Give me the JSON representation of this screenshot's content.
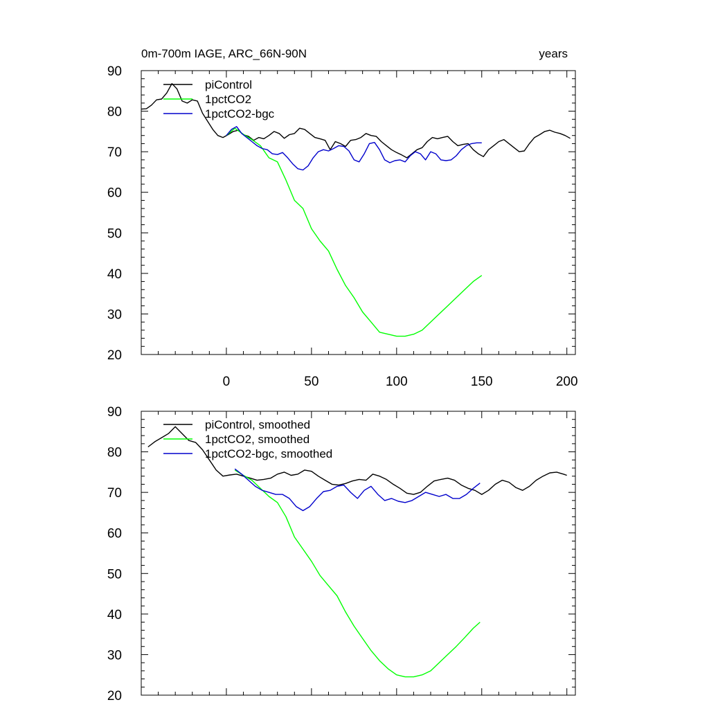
{
  "chart_data": [
    {
      "type": "line",
      "title_left": "0m-700m IAGE, ARC_66N-90N",
      "title_right": "years",
      "xlim": [
        -50,
        205
      ],
      "ylim": [
        20,
        90
      ],
      "xticks": [
        0,
        50,
        100,
        150,
        200
      ],
      "xtick_labels": [
        "0",
        "50",
        "100",
        "150",
        "200"
      ],
      "yticks": [
        20,
        30,
        40,
        50,
        60,
        70,
        80,
        90
      ],
      "ytick_labels": [
        "20",
        "30",
        "40",
        "50",
        "60",
        "70",
        "80",
        "90"
      ],
      "legend_position": "top-left",
      "series": [
        {
          "name": "piControl",
          "color": "#000000",
          "x": [
            -50,
            -47,
            -44,
            -41,
            -38,
            -35,
            -32,
            -29,
            -26,
            -23,
            -20,
            -17,
            -14,
            -11,
            -8,
            -5,
            -2,
            1,
            4,
            7,
            10,
            13,
            16,
            19,
            22,
            25,
            28,
            31,
            34,
            37,
            40,
            43,
            46,
            49,
            52,
            55,
            58,
            61,
            64,
            67,
            70,
            73,
            76,
            79,
            82,
            85,
            88,
            91,
            94,
            97,
            100,
            103,
            106,
            109,
            112,
            115,
            118,
            121,
            124,
            127,
            130,
            133,
            136,
            139,
            142,
            145,
            148,
            151,
            154,
            157,
            160,
            163,
            166,
            169,
            172,
            175,
            178,
            181,
            184,
            187,
            190,
            193,
            196,
            199,
            202
          ],
          "values": [
            80.5,
            80.6,
            81.5,
            82.8,
            83,
            84.5,
            86.8,
            85.5,
            82.5,
            82,
            82.8,
            82.5,
            79.5,
            77.5,
            75.5,
            74,
            73.5,
            74.2,
            75,
            75.3,
            74.2,
            73.8,
            72.8,
            73.5,
            73.2,
            74,
            75,
            74.5,
            73.3,
            74.2,
            74.5,
            75.8,
            75.5,
            74.5,
            73.5,
            73.2,
            72.8,
            70.5,
            72.5,
            72,
            71.3,
            72.8,
            73,
            73.5,
            74.5,
            74,
            73.8,
            72.5,
            71.5,
            70.5,
            69.8,
            69.2,
            68.5,
            69.5,
            70.5,
            71,
            72.5,
            73.5,
            73.2,
            73.5,
            73.8,
            72.5,
            71.5,
            71.8,
            72,
            70.5,
            69.5,
            68.8,
            70.5,
            71.5,
            72.5,
            73,
            72,
            71,
            70,
            70.2,
            72,
            73.5,
            74.2,
            75,
            75.3,
            74.8,
            74.5,
            74,
            73.3
          ]
        },
        {
          "name": "1pctCO2",
          "color": "#00ff00",
          "x": [
            0,
            5,
            10,
            15,
            20,
            25,
            30,
            35,
            40,
            45,
            50,
            55,
            60,
            65,
            70,
            75,
            80,
            85,
            90,
            95,
            100,
            105,
            110,
            115,
            120,
            125,
            130,
            135,
            140,
            145,
            150
          ],
          "values": [
            74,
            75.8,
            74.3,
            73,
            71.5,
            68.5,
            67.5,
            63,
            58,
            56,
            51,
            48,
            45.5,
            41,
            37,
            34,
            30.5,
            28,
            25.5,
            25,
            24.5,
            24.5,
            25,
            26,
            28,
            30,
            32,
            34,
            36,
            38,
            39.5
          ]
        },
        {
          "name": "1pctCO2-bgc",
          "color": "#0000cc",
          "x": [
            0,
            3,
            6,
            9,
            12,
            15,
            18,
            21,
            24,
            27,
            30,
            33,
            36,
            39,
            42,
            45,
            48,
            51,
            54,
            57,
            60,
            63,
            66,
            69,
            72,
            75,
            78,
            81,
            84,
            87,
            90,
            93,
            96,
            99,
            102,
            105,
            108,
            111,
            114,
            117,
            120,
            123,
            126,
            129,
            132,
            135,
            138,
            141,
            144,
            147,
            150
          ],
          "values": [
            74,
            75.5,
            76.2,
            74.5,
            73.5,
            72.5,
            71.5,
            70.8,
            70.5,
            69.5,
            69.3,
            69.8,
            68.5,
            67,
            65.8,
            65.5,
            66.5,
            68.5,
            70,
            70.5,
            70.2,
            70.8,
            71.5,
            71.3,
            70.2,
            68,
            67.5,
            69.5,
            72,
            72.3,
            70.5,
            68,
            67.3,
            67.8,
            68,
            67.5,
            69,
            70,
            69.5,
            68,
            70,
            69.5,
            68,
            67.8,
            68,
            69,
            70.5,
            71.5,
            72,
            72.2,
            72.2
          ]
        }
      ]
    },
    {
      "type": "line",
      "xlim": [
        -50,
        205
      ],
      "ylim": [
        20,
        90
      ],
      "xticks": [
        0,
        50,
        100,
        150,
        200
      ],
      "yticks": [
        20,
        30,
        40,
        50,
        60,
        70,
        80,
        90
      ],
      "ytick_labels": [
        "20",
        "30",
        "40",
        "50",
        "60",
        "70",
        "80",
        "90"
      ],
      "legend_position": "top-left",
      "series": [
        {
          "name": "piControl, smoothed",
          "color": "#000000",
          "x": [
            -46,
            -42,
            -38,
            -34,
            -30,
            -26,
            -22,
            -18,
            -14,
            -10,
            -6,
            -2,
            2,
            6,
            10,
            14,
            18,
            22,
            26,
            30,
            34,
            38,
            42,
            46,
            50,
            54,
            58,
            62,
            66,
            70,
            74,
            78,
            82,
            86,
            90,
            94,
            98,
            102,
            106,
            110,
            114,
            118,
            122,
            126,
            130,
            134,
            138,
            142,
            146,
            150,
            154,
            158,
            162,
            166,
            170,
            174,
            178,
            182,
            186,
            190,
            194,
            198,
            200
          ],
          "values": [
            81.2,
            82.5,
            83.5,
            84.5,
            86.2,
            84.5,
            82.8,
            82.3,
            80.5,
            78,
            75.5,
            74,
            74.3,
            74.5,
            74,
            73.5,
            73,
            73.2,
            73.5,
            74.5,
            75,
            74.2,
            74.5,
            75.5,
            75.2,
            74,
            73,
            72,
            71.8,
            72.2,
            72.8,
            73.2,
            73,
            74.5,
            74,
            73.2,
            72,
            71,
            69.8,
            69.5,
            70,
            71.5,
            72.8,
            73.2,
            73.5,
            73,
            71.8,
            71,
            70.5,
            69.5,
            70.5,
            72,
            73,
            72.5,
            71.2,
            70.5,
            71.5,
            73,
            74,
            74.8,
            75,
            74.5,
            74.2
          ]
        },
        {
          "name": "1pctCO2, smoothed",
          "color": "#00ff00",
          "x": [
            5,
            10,
            15,
            20,
            25,
            30,
            35,
            40,
            45,
            50,
            55,
            60,
            65,
            70,
            75,
            80,
            85,
            90,
            95,
            100,
            105,
            110,
            115,
            120,
            125,
            130,
            135,
            140,
            145,
            149
          ],
          "values": [
            75.5,
            74.2,
            73,
            71,
            69,
            67.5,
            64,
            59,
            56,
            53,
            49.5,
            47,
            44.5,
            40.5,
            37,
            34,
            31,
            28.5,
            26.5,
            25,
            24.5,
            24.5,
            25,
            26,
            28,
            30,
            32,
            34.2,
            36.5,
            38
          ]
        },
        {
          "name": "1pctCO2-bgc, smoothed",
          "color": "#0000cc",
          "x": [
            5,
            9,
            13,
            17,
            21,
            25,
            29,
            33,
            37,
            41,
            45,
            49,
            53,
            57,
            61,
            65,
            69,
            73,
            77,
            81,
            85,
            89,
            93,
            97,
            101,
            105,
            109,
            113,
            117,
            121,
            125,
            129,
            133,
            137,
            141,
            145,
            149
          ],
          "values": [
            75.8,
            74.5,
            73,
            71.5,
            70.5,
            70,
            69.5,
            69.5,
            68.5,
            66.5,
            65.5,
            66.5,
            68.5,
            70.2,
            70.5,
            71.5,
            71.8,
            70,
            68.5,
            70.5,
            71.5,
            69.5,
            68,
            68.5,
            67.8,
            67.5,
            68,
            69,
            70,
            69.5,
            69,
            69.5,
            68.5,
            68.5,
            69.5,
            71,
            72.3
          ]
        }
      ]
    }
  ]
}
